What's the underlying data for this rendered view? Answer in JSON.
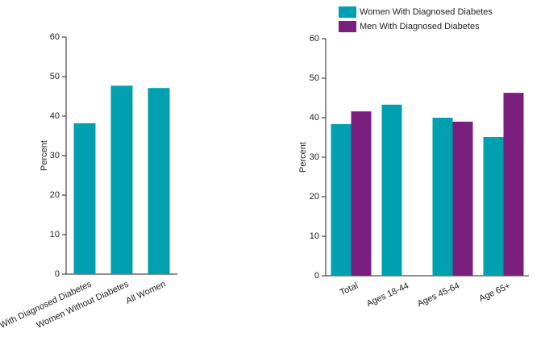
{
  "chart_data": [
    {
      "type": "bar",
      "y_label": "Percent",
      "categories": [
        "Women With Diagnosed Diabetes",
        "Women Without Diabetes",
        "All Women"
      ],
      "values": [
        38.2,
        47.7,
        47.1
      ],
      "color": "#00a0b0",
      "ylim": [
        0,
        60
      ],
      "yticks": [
        0,
        10,
        20,
        30,
        40,
        50,
        60
      ]
    },
    {
      "type": "grouped-bar",
      "y_label": "Percent",
      "categories": [
        "Total",
        "Ages 18-44",
        "Ages 45-64",
        "Age 65+"
      ],
      "series": [
        {
          "name": "Women With Diagnosed Diabetes",
          "color": "#00a0b0",
          "values": [
            38.4,
            43.3,
            40.0,
            35.1
          ]
        },
        {
          "name": "Men With Diagnosed Diabetes",
          "color": "#7b1f7f",
          "values": [
            41.6,
            null,
            39.0,
            46.3
          ]
        }
      ],
      "ylim": [
        0,
        60
      ],
      "yticks": [
        0,
        10,
        20,
        30,
        40,
        50,
        60
      ],
      "legend": "top"
    }
  ]
}
